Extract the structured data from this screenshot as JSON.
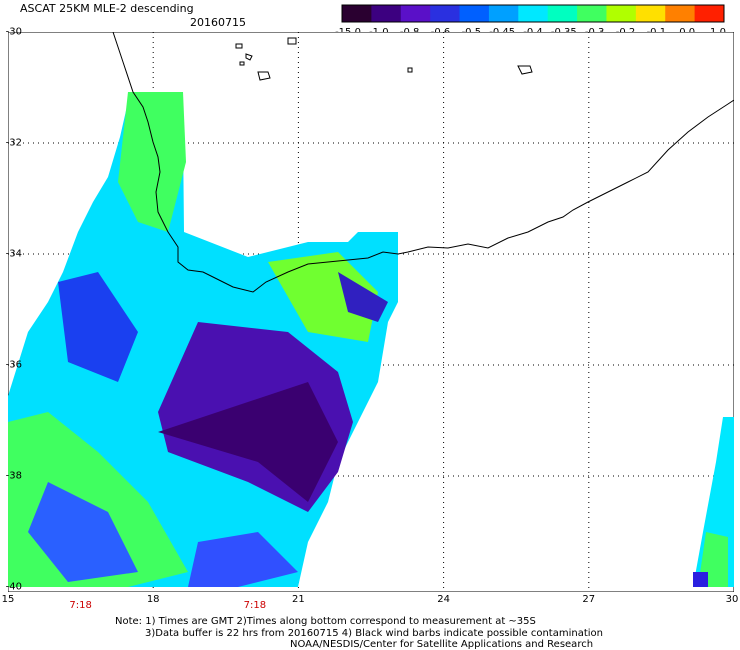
{
  "title": "ASCAT 25KM MLE-2 descending",
  "date": "20160715",
  "colorbar": {
    "labels": [
      "-15.0",
      "-1.0",
      "-0.8",
      "-0.6",
      "-0.5",
      "-0.45",
      "-0.4",
      "-0.35",
      "-0.3",
      "-0.2",
      "-0.1",
      "0.0",
      "1.0"
    ],
    "colors": [
      "#2a0030",
      "#3c0080",
      "#5a10c8",
      "#2a30e0",
      "#0060ff",
      "#00a0ff",
      "#00e8ff",
      "#00ffc0",
      "#40ff60",
      "#b0ff00",
      "#ffe000",
      "#ff8000",
      "#ff2000"
    ]
  },
  "axes": {
    "lat_labels": [
      "-30",
      "-32",
      "-34",
      "-36",
      "-38",
      "-40"
    ],
    "lon_labels": [
      "15",
      "18",
      "21",
      "24",
      "27",
      "30"
    ]
  },
  "times": [
    "7:18",
    "7:18"
  ],
  "notes": [
    "Note: 1) Times are GMT 2)Times along bottom correspond to measurement at ~35S",
    "3)Data buffer is 22 hrs from 20160715 4) Black wind barbs indicate possible contamination",
    "NOAA/NESDIS/Center for Satellite Applications and Research"
  ]
}
